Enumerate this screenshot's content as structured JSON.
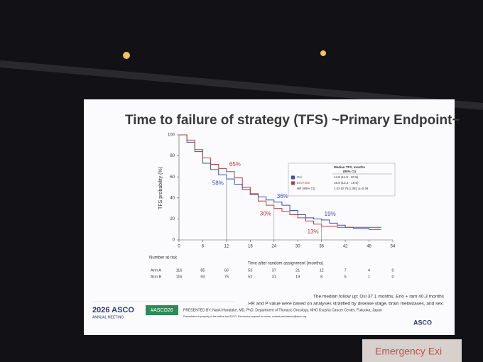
{
  "chart_data": {
    "type": "km",
    "title": "Time to failure of strategy (TFS) ~Primary Endpoint~",
    "y_label": "TFS probability (%)",
    "x_label": "Time after random assignment (months)",
    "x": [
      0,
      2,
      4,
      6,
      8,
      10,
      12,
      14,
      16,
      18,
      20,
      22,
      24,
      26,
      28,
      30,
      32,
      34,
      36,
      38,
      40,
      42,
      44,
      46,
      48,
      50
    ],
    "series": [
      {
        "name": "Osi",
        "color": "#3a4fb0",
        "values": [
          100,
          93,
          84,
          73,
          67,
          62,
          58,
          53,
          48,
          44,
          41,
          38,
          36,
          33,
          28,
          24,
          21,
          20,
          19,
          16,
          14,
          12,
          11,
          11,
          10,
          10
        ]
      },
      {
        "name": "Erlo+ram",
        "color": "#b0403a",
        "values": [
          100,
          95,
          86,
          78,
          72,
          68,
          65,
          59,
          50,
          43,
          37,
          33,
          30,
          27,
          24,
          21,
          18,
          15,
          13,
          13,
          12,
          12,
          12,
          12,
          12,
          12
        ]
      }
    ],
    "annotations": [
      {
        "text": "65%",
        "series": 1,
        "x": 12,
        "y": 65
      },
      {
        "text": "58%",
        "series": 0,
        "x": 12,
        "y": 58
      },
      {
        "text": "36%",
        "series": 0,
        "x": 24,
        "y": 36
      },
      {
        "text": "30%",
        "series": 1,
        "x": 24,
        "y": 30
      },
      {
        "text": "19%",
        "series": 0,
        "x": 36,
        "y": 19
      },
      {
        "text": "13%",
        "series": 1,
        "x": 36,
        "y": 13
      }
    ],
    "xlim": [
      0,
      54
    ],
    "xticks": [
      0,
      6,
      12,
      18,
      24,
      30,
      36,
      42,
      48,
      54
    ],
    "ylim": [
      0,
      100
    ],
    "yticks": [
      0,
      20,
      40,
      60,
      80,
      100
    ]
  },
  "median_table": {
    "header": [
      "Median TFS, months",
      "(95% CI)"
    ],
    "rows": [
      [
        "Osi",
        "14.8 (11.8 - 20.5)"
      ],
      [
        "Erlo+ram",
        "16.8 (13.3 - 19.6)"
      ],
      [
        "HR (95% CI)",
        "1.03 (0.76-1.38); p=0.49"
      ]
    ]
  },
  "risk_table": {
    "title": "Number at risk",
    "rows": [
      {
        "label": "Arm A",
        "values": [
          116,
          85,
          66,
          53,
          37,
          21,
          12,
          7,
          4,
          0
        ]
      },
      {
        "label": "Arm B",
        "values": [
          116,
          93,
          75,
          52,
          31,
          19,
          8,
          5,
          1,
          0
        ]
      }
    ]
  },
  "notes": [
    "The median follow up: Osi 37.1 months, Erlo + ram 40.3 months",
    "HR and P value were based on analyses stratified by disease stage, brain metastases, and sex."
  ],
  "footer": {
    "year_brand": "2026 ASCO",
    "meeting": "ANNUAL MEETING",
    "hashtag": "#ASCO26",
    "presenter": "PRESENTED BY: Naoki Haratake, MD, PhD, Department of Thoracic Oncology, NHO Kyushu Cancer Center, Fukuoka, Japan",
    "disclaimer": "Presentation is property of the author and ASCO. Permission required for reuse; contact permissions@asco.org.",
    "logo": "ASCO"
  },
  "scene": {
    "sign": "Emergency Exi"
  }
}
